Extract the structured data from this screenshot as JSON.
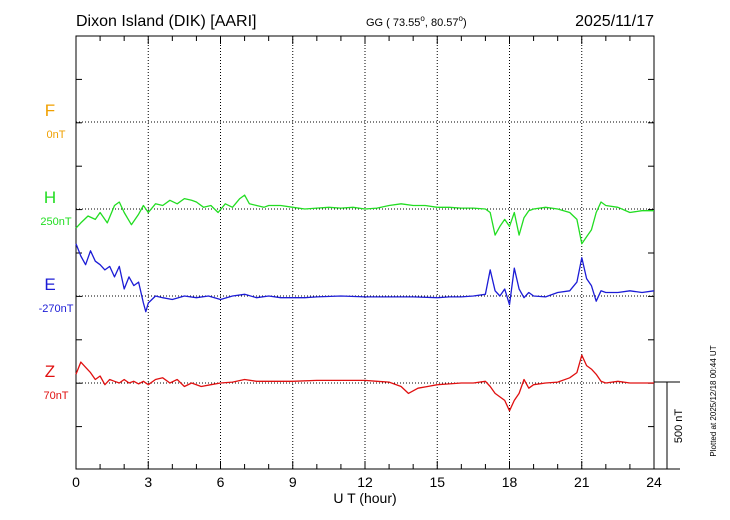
{
  "header": {
    "station": "Dixon Island (DIK)  [AARI]",
    "coords_prefix": "GG ( 73.55",
    "coords_mid": ",  80.57",
    "coords_suffix": ")",
    "date": "2025/11/17"
  },
  "plotted_note": "Plotted at 2025/12/18 00:44 UT",
  "scale_label": "500 nT",
  "chart_data": {
    "type": "line",
    "title": "Dixon Island (DIK)  [AARI]",
    "xlabel": "U T (hour)",
    "ylabel": "",
    "xlim": [
      0,
      24
    ],
    "x_ticks": [
      0,
      3,
      6,
      9,
      12,
      15,
      18,
      21,
      24
    ],
    "grid": true,
    "scale_nT": 500,
    "series": [
      {
        "name": "F",
        "baseline_label": "0nT",
        "color": "#f0a000",
        "baseline_row": 0,
        "points": []
      },
      {
        "name": "H",
        "baseline_label": "250nT",
        "color": "#22dd22",
        "baseline_row": 1,
        "points": [
          [
            0,
            -110
          ],
          [
            0.2,
            -80
          ],
          [
            0.5,
            -40
          ],
          [
            0.8,
            -60
          ],
          [
            1.0,
            -20
          ],
          [
            1.3,
            -80
          ],
          [
            1.6,
            20
          ],
          [
            1.8,
            40
          ],
          [
            2.0,
            -20
          ],
          [
            2.3,
            -90
          ],
          [
            2.6,
            -30
          ],
          [
            2.8,
            20
          ],
          [
            3.0,
            -20
          ],
          [
            3.3,
            30
          ],
          [
            3.6,
            20
          ],
          [
            3.9,
            50
          ],
          [
            4.2,
            30
          ],
          [
            4.5,
            60
          ],
          [
            4.8,
            50
          ],
          [
            5.0,
            40
          ],
          [
            5.3,
            10
          ],
          [
            5.6,
            20
          ],
          [
            5.9,
            -20
          ],
          [
            6.2,
            30
          ],
          [
            6.5,
            10
          ],
          [
            6.8,
            60
          ],
          [
            7.0,
            80
          ],
          [
            7.2,
            30
          ],
          [
            7.5,
            20
          ],
          [
            7.8,
            10
          ],
          [
            8.0,
            20
          ],
          [
            8.5,
            20
          ],
          [
            9.0,
            10
          ],
          [
            9.5,
            0
          ],
          [
            10,
            5
          ],
          [
            10.5,
            10
          ],
          [
            11,
            5
          ],
          [
            11.5,
            10
          ],
          [
            12,
            0
          ],
          [
            12.5,
            5
          ],
          [
            13,
            20
          ],
          [
            13.5,
            30
          ],
          [
            14,
            20
          ],
          [
            14.5,
            20
          ],
          [
            15,
            10
          ],
          [
            15.5,
            10
          ],
          [
            16,
            5
          ],
          [
            16.5,
            5
          ],
          [
            17,
            0
          ],
          [
            17.2,
            -20
          ],
          [
            17.4,
            -150
          ],
          [
            17.6,
            -100
          ],
          [
            17.8,
            -60
          ],
          [
            18.0,
            -100
          ],
          [
            18.2,
            -20
          ],
          [
            18.4,
            -150
          ],
          [
            18.6,
            -50
          ],
          [
            18.8,
            -10
          ],
          [
            19,
            0
          ],
          [
            19.5,
            10
          ],
          [
            20,
            0
          ],
          [
            20.5,
            -20
          ],
          [
            20.8,
            -60
          ],
          [
            21.0,
            -200
          ],
          [
            21.2,
            -160
          ],
          [
            21.4,
            -120
          ],
          [
            21.6,
            -20
          ],
          [
            21.8,
            40
          ],
          [
            22,
            20
          ],
          [
            22.5,
            10
          ],
          [
            23,
            -20
          ],
          [
            23.5,
            -10
          ],
          [
            24,
            -10
          ]
        ]
      },
      {
        "name": "E",
        "baseline_label": "-270nT",
        "color": "#1c1cd6",
        "baseline_row": 2,
        "points": [
          [
            0,
            300
          ],
          [
            0.2,
            230
          ],
          [
            0.4,
            180
          ],
          [
            0.6,
            260
          ],
          [
            0.8,
            200
          ],
          [
            1.0,
            180
          ],
          [
            1.2,
            150
          ],
          [
            1.4,
            170
          ],
          [
            1.6,
            110
          ],
          [
            1.8,
            170
          ],
          [
            2.0,
            40
          ],
          [
            2.2,
            110
          ],
          [
            2.4,
            60
          ],
          [
            2.6,
            80
          ],
          [
            2.8,
            -40
          ],
          [
            2.9,
            -90
          ],
          [
            3.0,
            -40
          ],
          [
            3.3,
            0
          ],
          [
            3.6,
            -10
          ],
          [
            4,
            -20
          ],
          [
            4.5,
            0
          ],
          [
            5,
            -10
          ],
          [
            5.5,
            0
          ],
          [
            6,
            -20
          ],
          [
            6.5,
            0
          ],
          [
            7,
            10
          ],
          [
            7.5,
            -10
          ],
          [
            8,
            0
          ],
          [
            8.5,
            -10
          ],
          [
            9,
            -10
          ],
          [
            9.5,
            -10
          ],
          [
            10,
            -5
          ],
          [
            11,
            0
          ],
          [
            12,
            -5
          ],
          [
            12.5,
            -5
          ],
          [
            13,
            -5
          ],
          [
            14,
            -5
          ],
          [
            15,
            -10
          ],
          [
            15.5,
            -5
          ],
          [
            16,
            -5
          ],
          [
            16.5,
            0
          ],
          [
            17,
            10
          ],
          [
            17.2,
            150
          ],
          [
            17.4,
            30
          ],
          [
            17.6,
            0
          ],
          [
            17.8,
            40
          ],
          [
            18.0,
            -50
          ],
          [
            18.2,
            160
          ],
          [
            18.4,
            40
          ],
          [
            18.6,
            -10
          ],
          [
            18.8,
            20
          ],
          [
            19,
            0
          ],
          [
            19.5,
            -5
          ],
          [
            20,
            20
          ],
          [
            20.5,
            30
          ],
          [
            20.8,
            80
          ],
          [
            21.0,
            220
          ],
          [
            21.2,
            100
          ],
          [
            21.4,
            60
          ],
          [
            21.6,
            -30
          ],
          [
            21.8,
            30
          ],
          [
            22,
            20
          ],
          [
            22.5,
            20
          ],
          [
            23,
            30
          ],
          [
            23.5,
            20
          ],
          [
            24,
            30
          ]
        ]
      },
      {
        "name": "Z",
        "baseline_label": "70nT",
        "color": "#e01010",
        "baseline_row": 3,
        "points": [
          [
            0,
            50
          ],
          [
            0.2,
            120
          ],
          [
            0.4,
            90
          ],
          [
            0.6,
            60
          ],
          [
            0.8,
            20
          ],
          [
            1.0,
            40
          ],
          [
            1.2,
            -10
          ],
          [
            1.4,
            20
          ],
          [
            1.6,
            10
          ],
          [
            1.8,
            0
          ],
          [
            2.0,
            20
          ],
          [
            2.2,
            0
          ],
          [
            2.4,
            10
          ],
          [
            2.6,
            -5
          ],
          [
            2.8,
            10
          ],
          [
            3.0,
            -10
          ],
          [
            3.3,
            20
          ],
          [
            3.6,
            30
          ],
          [
            3.9,
            0
          ],
          [
            4.2,
            20
          ],
          [
            4.5,
            -20
          ],
          [
            4.8,
            0
          ],
          [
            5.2,
            -20
          ],
          [
            5.6,
            -10
          ],
          [
            6,
            0
          ],
          [
            6.5,
            5
          ],
          [
            7,
            20
          ],
          [
            7.5,
            10
          ],
          [
            8,
            10
          ],
          [
            8.5,
            10
          ],
          [
            9,
            10
          ],
          [
            10,
            15
          ],
          [
            11,
            15
          ],
          [
            12,
            15
          ],
          [
            12.5,
            10
          ],
          [
            13,
            5
          ],
          [
            13.5,
            -20
          ],
          [
            13.8,
            -60
          ],
          [
            14.2,
            -30
          ],
          [
            14.6,
            -20
          ],
          [
            15,
            -10
          ],
          [
            15.5,
            -5
          ],
          [
            16,
            0
          ],
          [
            16.5,
            0
          ],
          [
            17,
            10
          ],
          [
            17.2,
            -20
          ],
          [
            17.4,
            -60
          ],
          [
            17.6,
            -80
          ],
          [
            17.8,
            -100
          ],
          [
            18.0,
            -160
          ],
          [
            18.2,
            -100
          ],
          [
            18.4,
            -60
          ],
          [
            18.6,
            20
          ],
          [
            18.8,
            -30
          ],
          [
            19,
            -10
          ],
          [
            19.5,
            0
          ],
          [
            20,
            5
          ],
          [
            20.5,
            30
          ],
          [
            20.8,
            60
          ],
          [
            21.0,
            160
          ],
          [
            21.2,
            100
          ],
          [
            21.4,
            80
          ],
          [
            21.6,
            50
          ],
          [
            21.8,
            10
          ],
          [
            22,
            0
          ],
          [
            22.5,
            10
          ],
          [
            23,
            0
          ],
          [
            23.5,
            0
          ],
          [
            24,
            0
          ]
        ]
      }
    ]
  }
}
